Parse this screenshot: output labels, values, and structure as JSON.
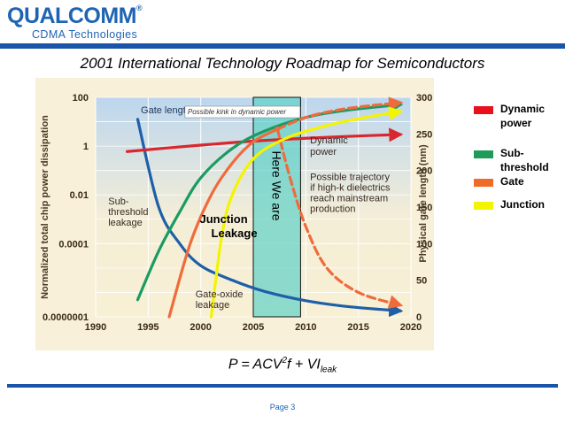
{
  "brand": {
    "logo_text": "QUALCOMM",
    "logo_mark": "®",
    "subtitle": "CDMA Technologies"
  },
  "slide": {
    "title": "2001 International Technology Roadmap for Semiconductors",
    "formula": {
      "lhs": "P = ACV",
      "sup": "2",
      "mid": "f + VI",
      "sub": "leak"
    },
    "page_label": "Page 3"
  },
  "legend": {
    "items": [
      {
        "label": "Dynamic power",
        "color": "#e8101c"
      },
      {
        "label": "Sub-threshold",
        "color": "#1e9b5a"
      },
      {
        "label": "Gate",
        "color": "#ef6b28"
      },
      {
        "label": "Junction",
        "color": "#f4f400"
      }
    ]
  },
  "chart_data": {
    "type": "line",
    "xlabel": "",
    "ylabel": "Normalized total chip power dissipation",
    "y2label": "Physical gate length (nm)",
    "xlim": [
      1990,
      2020
    ],
    "x_ticks": [
      "1990",
      "1995",
      "2000",
      "2005",
      "2010",
      "2015",
      "2020"
    ],
    "y_scale": "log",
    "ylim": [
      1e-07,
      100
    ],
    "y_ticks": [
      "100",
      "1",
      "0.01",
      "0.0001",
      "0.0000001"
    ],
    "y2lim": [
      0,
      300
    ],
    "y2_ticks": [
      "300",
      "250",
      "200",
      "150",
      "100",
      "50",
      "0"
    ],
    "grid": true,
    "highlight_band": {
      "x": [
        2005,
        2009.5
      ],
      "label": "Here We are",
      "color": "#5fd2c8"
    },
    "annotations": {
      "gate_length": "Gate length",
      "kink": "Possible kink in dynamic power",
      "dynamic": [
        "Dynamic",
        "power"
      ],
      "subthreshold": [
        "Sub-",
        "threshold",
        "leakage"
      ],
      "junction": [
        "Junction",
        "Leakage"
      ],
      "gate_oxide": [
        "Gate-oxide",
        "leakage"
      ],
      "trajectory": [
        "Possible trajectory",
        "if high-k dielectrics",
        "reach mainstream",
        "production"
      ],
      "trajectory_k": "k"
    },
    "series": [
      {
        "name": "Gate length",
        "axis": "right",
        "color": "#1f5fa8",
        "style": "solid",
        "x": [
          1994,
          1996,
          1998,
          2000,
          2003,
          2006,
          2010,
          2014,
          2019
        ],
        "y": [
          270,
          150,
          100,
          70,
          50,
          35,
          22,
          14,
          8
        ]
      },
      {
        "name": "Dynamic power",
        "axis": "left",
        "color": "#d9272e",
        "style": "solid",
        "x": [
          1993,
          2000,
          2005,
          2010,
          2015,
          2019
        ],
        "y": [
          0.6,
          1.1,
          1.6,
          2.1,
          2.6,
          3.0
        ]
      },
      {
        "name": "Sub-threshold leakage",
        "axis": "left",
        "color": "#1a9b62",
        "style": "solid",
        "x": [
          1994,
          1996,
          1998,
          2000,
          2003,
          2006,
          2010,
          2014,
          2019
        ],
        "y": [
          5e-07,
          5e-05,
          0.002,
          0.05,
          0.8,
          4,
          15,
          30,
          50
        ]
      },
      {
        "name": "Gate-oxide leakage",
        "axis": "left",
        "color": "#ef6b3c",
        "style": "solid",
        "x": [
          1997,
          1999,
          2001,
          2003,
          2005,
          2007.3
        ],
        "y": [
          1e-07,
          0.0001,
          0.01,
          0.2,
          1.5,
          5
        ]
      },
      {
        "name": "Gate-oxide leakage (projected)",
        "axis": "left",
        "color": "#ef6b3c",
        "style": "dashed",
        "x": [
          2007.3,
          2010,
          2013,
          2016,
          2019
        ],
        "y": [
          5,
          15,
          30,
          45,
          60
        ]
      },
      {
        "name": "Possible trajectory with high-k",
        "axis": "left",
        "color": "#ef6b3c",
        "style": "dashed",
        "x": [
          2007.3,
          2008.5,
          2010,
          2012,
          2015,
          2019
        ],
        "y": [
          5,
          0.05,
          0.0005,
          1e-05,
          1e-06,
          3e-07
        ]
      },
      {
        "name": "Junction leakage",
        "axis": "left",
        "color": "#f4f400",
        "style": "solid",
        "x": [
          2001,
          2002,
          2003,
          2005,
          2008,
          2012,
          2016,
          2019
        ],
        "y": [
          1e-07,
          0.0002,
          0.01,
          0.3,
          2,
          7,
          16,
          26
        ]
      }
    ]
  }
}
